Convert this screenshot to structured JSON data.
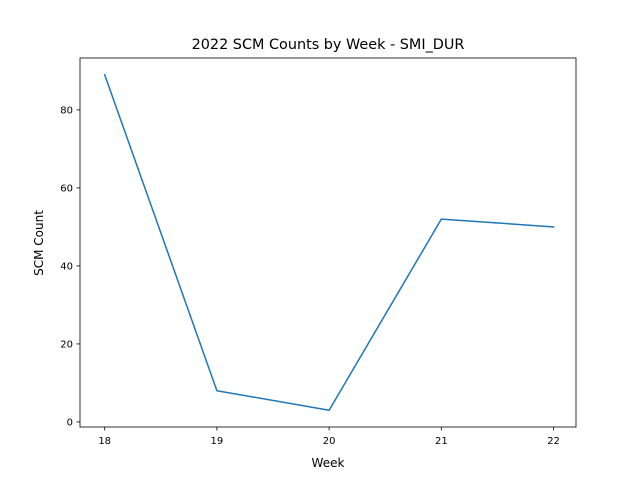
{
  "chart_data": {
    "type": "line",
    "title": "2022 SCM Counts by Week - SMI_DUR",
    "xlabel": "Week",
    "ylabel": "SCM Count",
    "x": [
      18,
      19,
      20,
      21,
      22
    ],
    "series": [
      {
        "values": [
          89,
          8,
          3,
          52,
          50
        ],
        "color": "#1f77b4"
      }
    ],
    "xlim": [
      17.78,
      22.2
    ],
    "ylim": [
      -1.3,
      93.3
    ],
    "xticks": [
      18,
      19,
      20,
      21,
      22
    ],
    "yticks": [
      0,
      20,
      40,
      60,
      80
    ],
    "grid": false,
    "legend": "none"
  }
}
